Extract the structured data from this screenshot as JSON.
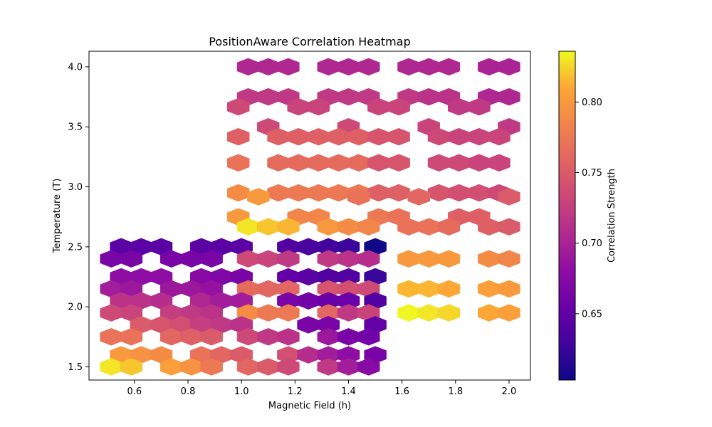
{
  "chart_data": {
    "type": "heatmap",
    "subtype": "hexbin",
    "title": "PositionAware Correlation Heatmap",
    "xlabel": "Magnetic Field (h)",
    "ylabel": "Temperature (T)",
    "colorbar_label": "Correlation Strength",
    "colormap": "plasma",
    "xlim": [
      0.43,
      2.08
    ],
    "ylim": [
      1.39,
      4.13
    ],
    "clim": [
      0.603,
      0.836
    ],
    "x_ticks": [
      "0.6",
      "0.8",
      "1.0",
      "1.2",
      "1.4",
      "1.6",
      "1.8",
      "2.0"
    ],
    "x_tick_values": [
      0.6,
      0.8,
      1.0,
      1.2,
      1.4,
      1.6,
      1.8,
      2.0
    ],
    "y_ticks": [
      "1.5",
      "2.0",
      "2.5",
      "3.0",
      "3.5",
      "4.0"
    ],
    "y_tick_values": [
      1.5,
      2.0,
      2.5,
      3.0,
      3.5,
      4.0
    ],
    "colorbar_ticks": [
      "0.65",
      "0.70",
      "0.75",
      "0.80"
    ],
    "colorbar_tick_values": [
      0.65,
      0.7,
      0.75,
      0.8
    ],
    "grid": false,
    "rows": [
      {
        "y": 4.0,
        "cells": [
          [
            1.025,
            0.705
          ],
          [
            1.1,
            0.705
          ],
          [
            1.175,
            0.705
          ],
          [
            1.325,
            0.705
          ],
          [
            1.4,
            0.705
          ],
          [
            1.475,
            0.705
          ],
          [
            1.625,
            0.705
          ],
          [
            1.7,
            0.705
          ],
          [
            1.775,
            0.705
          ],
          [
            1.925,
            0.7
          ],
          [
            2.0,
            0.7
          ]
        ]
      },
      {
        "y": 3.75,
        "cells": [
          [
            1.025,
            0.72
          ],
          [
            1.1,
            0.72
          ],
          [
            1.175,
            0.72
          ],
          [
            1.325,
            0.72
          ],
          [
            1.4,
            0.72
          ],
          [
            1.475,
            0.72
          ],
          [
            1.625,
            0.72
          ],
          [
            1.7,
            0.715
          ],
          [
            1.775,
            0.715
          ],
          [
            1.925,
            0.705
          ],
          [
            2.0,
            0.705
          ]
        ]
      },
      {
        "y": 3.667,
        "cells": [
          [
            0.988,
            0.735
          ],
          [
            1.213,
            0.73
          ],
          [
            1.288,
            0.73
          ],
          [
            1.513,
            0.73
          ],
          [
            1.588,
            0.73
          ],
          [
            1.813,
            0.72
          ],
          [
            1.888,
            0.72
          ]
        ]
      },
      {
        "y": 3.5,
        "cells": [
          [
            1.1,
            0.735
          ],
          [
            1.4,
            0.735
          ],
          [
            1.7,
            0.73
          ],
          [
            2.0,
            0.72
          ]
        ]
      },
      {
        "y": 3.417,
        "cells": [
          [
            0.988,
            0.755
          ],
          [
            1.138,
            0.755
          ],
          [
            1.213,
            0.755
          ],
          [
            1.288,
            0.755
          ],
          [
            1.363,
            0.755
          ],
          [
            1.438,
            0.755
          ],
          [
            1.513,
            0.745
          ],
          [
            1.588,
            0.745
          ],
          [
            1.738,
            0.735
          ],
          [
            1.813,
            0.73
          ],
          [
            1.888,
            0.73
          ],
          [
            1.963,
            0.73
          ]
        ]
      },
      {
        "y": 3.2,
        "cells": [
          [
            0.988,
            0.77
          ],
          [
            1.138,
            0.765
          ],
          [
            1.213,
            0.765
          ],
          [
            1.288,
            0.765
          ],
          [
            1.363,
            0.765
          ],
          [
            1.438,
            0.765
          ],
          [
            1.513,
            0.745
          ],
          [
            1.588,
            0.745
          ],
          [
            1.738,
            0.735
          ],
          [
            1.813,
            0.735
          ],
          [
            1.888,
            0.73
          ],
          [
            1.963,
            0.73
          ]
        ]
      },
      {
        "y": 2.95,
        "cells": [
          [
            0.988,
            0.79
          ],
          [
            1.138,
            0.775
          ],
          [
            1.213,
            0.775
          ],
          [
            1.288,
            0.775
          ],
          [
            1.363,
            0.775
          ],
          [
            1.438,
            0.775
          ],
          [
            1.513,
            0.755
          ],
          [
            1.588,
            0.755
          ],
          [
            1.738,
            0.745
          ],
          [
            1.813,
            0.74
          ],
          [
            1.888,
            0.74
          ],
          [
            1.963,
            0.735
          ]
        ]
      },
      {
        "y": 2.917,
        "cells": [
          [
            1.063,
            0.8
          ],
          [
            1.438,
            0.77
          ],
          [
            1.663,
            0.76
          ],
          [
            2.0,
            0.75
          ]
        ]
      },
      {
        "y": 2.75,
        "cells": [
          [
            0.988,
            0.8
          ],
          [
            1.213,
            0.785
          ],
          [
            1.288,
            0.785
          ],
          [
            1.513,
            0.775
          ],
          [
            1.588,
            0.77
          ],
          [
            1.813,
            0.755
          ],
          [
            1.888,
            0.755
          ]
        ]
      },
      {
        "y": 2.667,
        "cells": [
          [
            1.025,
            0.83
          ],
          [
            1.1,
            0.82
          ],
          [
            1.175,
            0.815
          ],
          [
            1.325,
            0.8
          ],
          [
            1.4,
            0.79
          ],
          [
            1.475,
            0.785
          ],
          [
            1.625,
            0.77
          ],
          [
            1.7,
            0.77
          ],
          [
            1.775,
            0.765
          ],
          [
            1.925,
            0.755
          ],
          [
            2.0,
            0.75
          ]
        ]
      },
      {
        "y": 2.5,
        "cells": [
          [
            0.55,
            0.645
          ],
          [
            0.625,
            0.645
          ],
          [
            0.7,
            0.645
          ],
          [
            0.85,
            0.645
          ],
          [
            0.925,
            0.645
          ],
          [
            1.0,
            0.645
          ],
          [
            1.175,
            0.64
          ],
          [
            1.25,
            0.635
          ],
          [
            1.325,
            0.63
          ],
          [
            1.4,
            0.625
          ],
          [
            1.5,
            0.605
          ]
        ]
      },
      {
        "y": 2.4,
        "cells": [
          [
            0.513,
            0.665
          ],
          [
            0.588,
            0.665
          ],
          [
            0.738,
            0.665
          ],
          [
            0.813,
            0.665
          ],
          [
            0.888,
            0.665
          ],
          [
            1.025,
            0.735
          ],
          [
            1.1,
            0.73
          ],
          [
            1.175,
            0.72
          ],
          [
            1.325,
            0.72
          ],
          [
            1.4,
            0.715
          ],
          [
            1.475,
            0.71
          ],
          [
            1.625,
            0.8
          ],
          [
            1.7,
            0.8
          ],
          [
            1.775,
            0.8
          ],
          [
            1.925,
            0.79
          ],
          [
            2.0,
            0.785
          ]
        ]
      },
      {
        "y": 2.25,
        "cells": [
          [
            0.55,
            0.68
          ],
          [
            0.625,
            0.68
          ],
          [
            0.7,
            0.68
          ],
          [
            0.85,
            0.675
          ],
          [
            0.925,
            0.67
          ],
          [
            1.0,
            0.665
          ],
          [
            1.175,
            0.65
          ],
          [
            1.25,
            0.645
          ],
          [
            1.325,
            0.64
          ],
          [
            1.4,
            0.64
          ],
          [
            1.5,
            0.625
          ]
        ]
      },
      {
        "y": 2.15,
        "cells": [
          [
            0.513,
            0.695
          ],
          [
            0.588,
            0.69
          ],
          [
            0.738,
            0.69
          ],
          [
            0.813,
            0.69
          ],
          [
            0.888,
            0.685
          ],
          [
            1.025,
            0.765
          ],
          [
            1.1,
            0.76
          ],
          [
            1.175,
            0.76
          ],
          [
            1.325,
            0.745
          ],
          [
            1.4,
            0.74
          ],
          [
            1.475,
            0.735
          ],
          [
            1.625,
            0.815
          ],
          [
            1.7,
            0.815
          ],
          [
            1.775,
            0.81
          ],
          [
            1.925,
            0.805
          ],
          [
            2.0,
            0.8
          ]
        ]
      },
      {
        "y": 2.05,
        "cells": [
          [
            0.55,
            0.715
          ],
          [
            0.625,
            0.715
          ],
          [
            0.7,
            0.71
          ],
          [
            0.85,
            0.705
          ],
          [
            0.925,
            0.695
          ],
          [
            1.0,
            0.695
          ],
          [
            1.175,
            0.665
          ],
          [
            1.25,
            0.66
          ],
          [
            1.325,
            0.655
          ],
          [
            1.4,
            0.655
          ],
          [
            1.5,
            0.64
          ]
        ]
      },
      {
        "y": 1.95,
        "cells": [
          [
            0.513,
            0.735
          ],
          [
            0.588,
            0.73
          ],
          [
            0.738,
            0.725
          ],
          [
            0.813,
            0.72
          ],
          [
            0.888,
            0.715
          ],
          [
            1.025,
            0.79
          ],
          [
            1.1,
            0.775
          ],
          [
            1.175,
            0.775
          ],
          [
            1.325,
            0.76
          ],
          [
            1.4,
            0.72
          ],
          [
            1.475,
            0.73
          ],
          [
            1.625,
            0.835
          ],
          [
            1.7,
            0.83
          ],
          [
            1.775,
            0.825
          ],
          [
            1.925,
            0.81
          ],
          [
            2.0,
            0.805
          ]
        ]
      },
      {
        "y": 1.85,
        "cells": [
          [
            0.625,
            0.75
          ],
          [
            0.7,
            0.745
          ],
          [
            0.775,
            0.74
          ],
          [
            0.85,
            0.725
          ],
          [
            0.925,
            0.72
          ],
          [
            1.0,
            0.715
          ],
          [
            1.25,
            0.665
          ],
          [
            1.325,
            0.665
          ],
          [
            1.5,
            0.65
          ]
        ]
      },
      {
        "y": 1.75,
        "cells": [
          [
            0.513,
            0.77
          ],
          [
            0.588,
            0.77
          ],
          [
            0.738,
            0.76
          ],
          [
            0.813,
            0.755
          ],
          [
            0.888,
            0.75
          ],
          [
            1.025,
            0.735
          ],
          [
            1.1,
            0.72
          ],
          [
            1.175,
            0.715
          ],
          [
            1.325,
            0.69
          ],
          [
            1.4,
            0.665
          ],
          [
            1.475,
            0.66
          ]
        ]
      },
      {
        "y": 1.6,
        "cells": [
          [
            0.55,
            0.8
          ],
          [
            0.625,
            0.795
          ],
          [
            0.7,
            0.79
          ],
          [
            0.85,
            0.77
          ],
          [
            0.925,
            0.76
          ],
          [
            1.0,
            0.75
          ],
          [
            1.175,
            0.74
          ],
          [
            1.25,
            0.71
          ],
          [
            1.325,
            0.695
          ],
          [
            1.4,
            0.68
          ],
          [
            1.5,
            0.665
          ]
        ]
      },
      {
        "y": 1.5,
        "cells": [
          [
            0.513,
            0.83
          ],
          [
            0.588,
            0.82
          ],
          [
            0.738,
            0.805
          ],
          [
            0.813,
            0.795
          ],
          [
            0.888,
            0.775
          ],
          [
            1.025,
            0.76
          ],
          [
            1.1,
            0.75
          ],
          [
            1.175,
            0.735
          ],
          [
            1.325,
            0.72
          ],
          [
            1.4,
            0.695
          ],
          [
            1.475,
            0.675
          ]
        ]
      }
    ]
  }
}
